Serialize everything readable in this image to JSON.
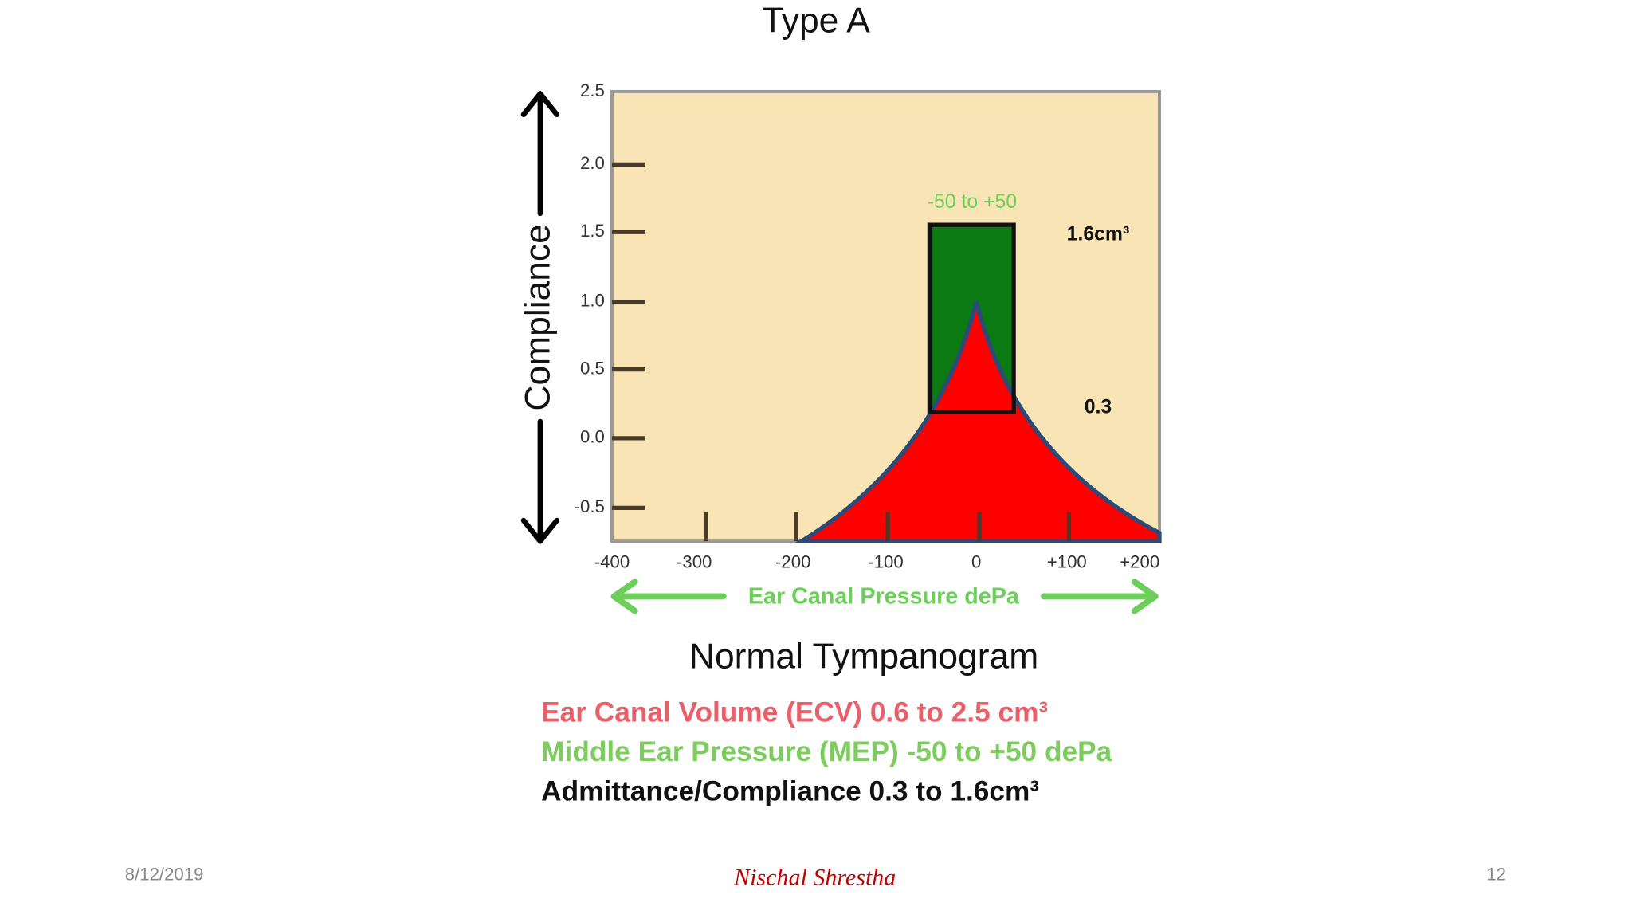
{
  "title": "Type A",
  "figure": {
    "y_axis_label": "Compliance",
    "y_ticks": [
      "2.5",
      "2.0",
      "1.5",
      "1.0",
      "0.5",
      "0.0",
      "-0.5"
    ],
    "x_ticks": [
      "-400",
      "-300",
      "-200",
      "-100",
      "0",
      "+100",
      "+200"
    ],
    "x_axis_label": "Ear Canal Pressure dePa",
    "box_label": "-50 to +50",
    "upper_label": "1.6cm³",
    "lower_label": "0.3"
  },
  "subtitle": "Normal Tympanogram",
  "notes": [
    "Ear Canal Volume (ECV) 0.6 to 2.5 cm³",
    "Middle Ear Pressure (MEP) -50 to +50 dePa",
    "Admittance/Compliance 0.3 to 1.6cm³"
  ],
  "footer": {
    "date": "8/12/2019",
    "author": "Nischal Shrestha",
    "page": "12"
  }
}
